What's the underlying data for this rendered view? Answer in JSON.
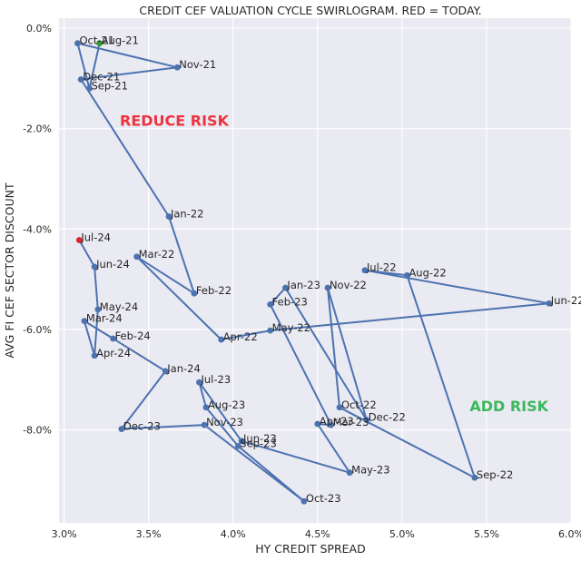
{
  "chart_data": {
    "type": "scatter",
    "title": "CREDIT CEF VALUATION CYCLE SWIRLOGRAM. RED = TODAY.",
    "xlabel": "HY CREDIT SPREAD",
    "ylabel": "AVG FI CEF SECTOR DISCOUNT",
    "xlim": [
      2.97,
      6.0
    ],
    "ylim": [
      -9.85,
      0.2
    ],
    "x_ticks": [
      3.0,
      3.5,
      4.0,
      4.5,
      5.0,
      5.5,
      6.0
    ],
    "x_tick_labels": [
      "3.0%",
      "3.5%",
      "4.0%",
      "4.5%",
      "5.0%",
      "5.5%",
      "6.0%"
    ],
    "y_ticks": [
      0.0,
      -2.0,
      -4.0,
      -6.0,
      -8.0
    ],
    "y_tick_labels": [
      "0.0%",
      "-2.0%",
      "-4.0%",
      "-6.0%",
      "-8.0%"
    ],
    "grid": true,
    "line_color": "#4c72b0",
    "first_point_color": "#2ca02c",
    "last_point_color": "#d62728",
    "points": [
      {
        "label": "Aug-21",
        "x": 3.21,
        "y": -0.3
      },
      {
        "label": "Sep-21",
        "x": 3.15,
        "y": -1.2
      },
      {
        "label": "Oct-21",
        "x": 3.08,
        "y": -0.3
      },
      {
        "label": "Nov-21",
        "x": 3.67,
        "y": -0.78
      },
      {
        "label": "Dec-21",
        "x": 3.1,
        "y": -1.02
      },
      {
        "label": "Jan-22",
        "x": 3.62,
        "y": -3.75
      },
      {
        "label": "Feb-22",
        "x": 3.77,
        "y": -5.28
      },
      {
        "label": "Mar-22",
        "x": 3.43,
        "y": -4.55
      },
      {
        "label": "Apr-22",
        "x": 3.93,
        "y": -6.2
      },
      {
        "label": "May-22",
        "x": 4.22,
        "y": -6.02
      },
      {
        "label": "Jun-22",
        "x": 5.87,
        "y": -5.48
      },
      {
        "label": "Jul-22",
        "x": 4.78,
        "y": -4.82
      },
      {
        "label": "Aug-22",
        "x": 5.03,
        "y": -4.92
      },
      {
        "label": "Sep-22",
        "x": 5.43,
        "y": -8.95
      },
      {
        "label": "Oct-22",
        "x": 4.63,
        "y": -7.55
      },
      {
        "label": "Nov-22",
        "x": 4.56,
        "y": -5.17
      },
      {
        "label": "Dec-22",
        "x": 4.79,
        "y": -7.8
      },
      {
        "label": "Jan-23",
        "x": 4.31,
        "y": -5.17
      },
      {
        "label": "Feb-23",
        "x": 4.22,
        "y": -5.5
      },
      {
        "label": "Mar-23",
        "x": 4.58,
        "y": -7.9
      },
      {
        "label": "Apr-23",
        "x": 4.5,
        "y": -7.88
      },
      {
        "label": "May-23",
        "x": 4.69,
        "y": -8.85
      },
      {
        "label": "Jun-23",
        "x": 4.05,
        "y": -8.22
      },
      {
        "label": "Jul-23",
        "x": 3.8,
        "y": -7.05
      },
      {
        "label": "Aug-23",
        "x": 3.84,
        "y": -7.55
      },
      {
        "label": "Sep-23",
        "x": 4.03,
        "y": -8.32
      },
      {
        "label": "Oct-23",
        "x": 4.42,
        "y": -9.42
      },
      {
        "label": "Nov-23",
        "x": 3.83,
        "y": -7.9
      },
      {
        "label": "Dec-23",
        "x": 3.34,
        "y": -7.98
      },
      {
        "label": "Jan-24",
        "x": 3.6,
        "y": -6.83
      },
      {
        "label": "Feb-24",
        "x": 3.29,
        "y": -6.18
      },
      {
        "label": "Mar-24",
        "x": 3.12,
        "y": -5.83
      },
      {
        "label": "Apr-24",
        "x": 3.18,
        "y": -6.52
      },
      {
        "label": "May-24",
        "x": 3.2,
        "y": -5.6
      },
      {
        "label": "Jun-24",
        "x": 3.18,
        "y": -4.75
      },
      {
        "label": "Jul-24",
        "x": 3.09,
        "y": -4.22
      }
    ],
    "annotations": [
      {
        "text": "REDUCE RISK",
        "x": 3.33,
        "y": -1.83,
        "color": "#ee3340"
      },
      {
        "text": "ADD RISK",
        "x": 5.4,
        "y": -7.52,
        "color": "#3cb85c"
      }
    ]
  }
}
